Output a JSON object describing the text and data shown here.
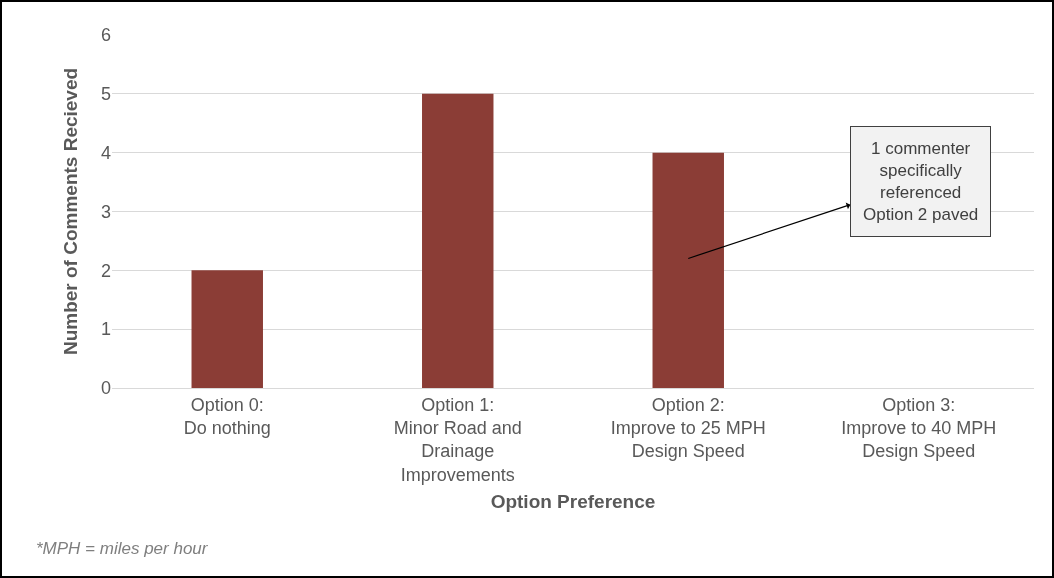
{
  "chart_data": {
    "type": "bar",
    "xlabel": "Option Preference",
    "ylabel": "Number of Comments Recieved",
    "categories": [
      "Option 0:\nDo nothing",
      "Option 1:\nMinor Road and\nDrainage\nImprovements",
      "Option 2:\nImprove to 25 MPH\nDesign Speed",
      "Option 3:\nImprove to 40 MPH\nDesign Speed"
    ],
    "values": [
      2,
      5,
      4,
      0
    ],
    "color": "#8b3d36",
    "ylim": [
      0,
      6
    ],
    "yticks": [
      0,
      1,
      2,
      3,
      4,
      5,
      6
    ],
    "grid": "y",
    "legend": false,
    "annotations": [
      "1 commenter\nspecifically\nreferenced\nOption 2 paved",
      "*MPH = miles per hour"
    ]
  }
}
